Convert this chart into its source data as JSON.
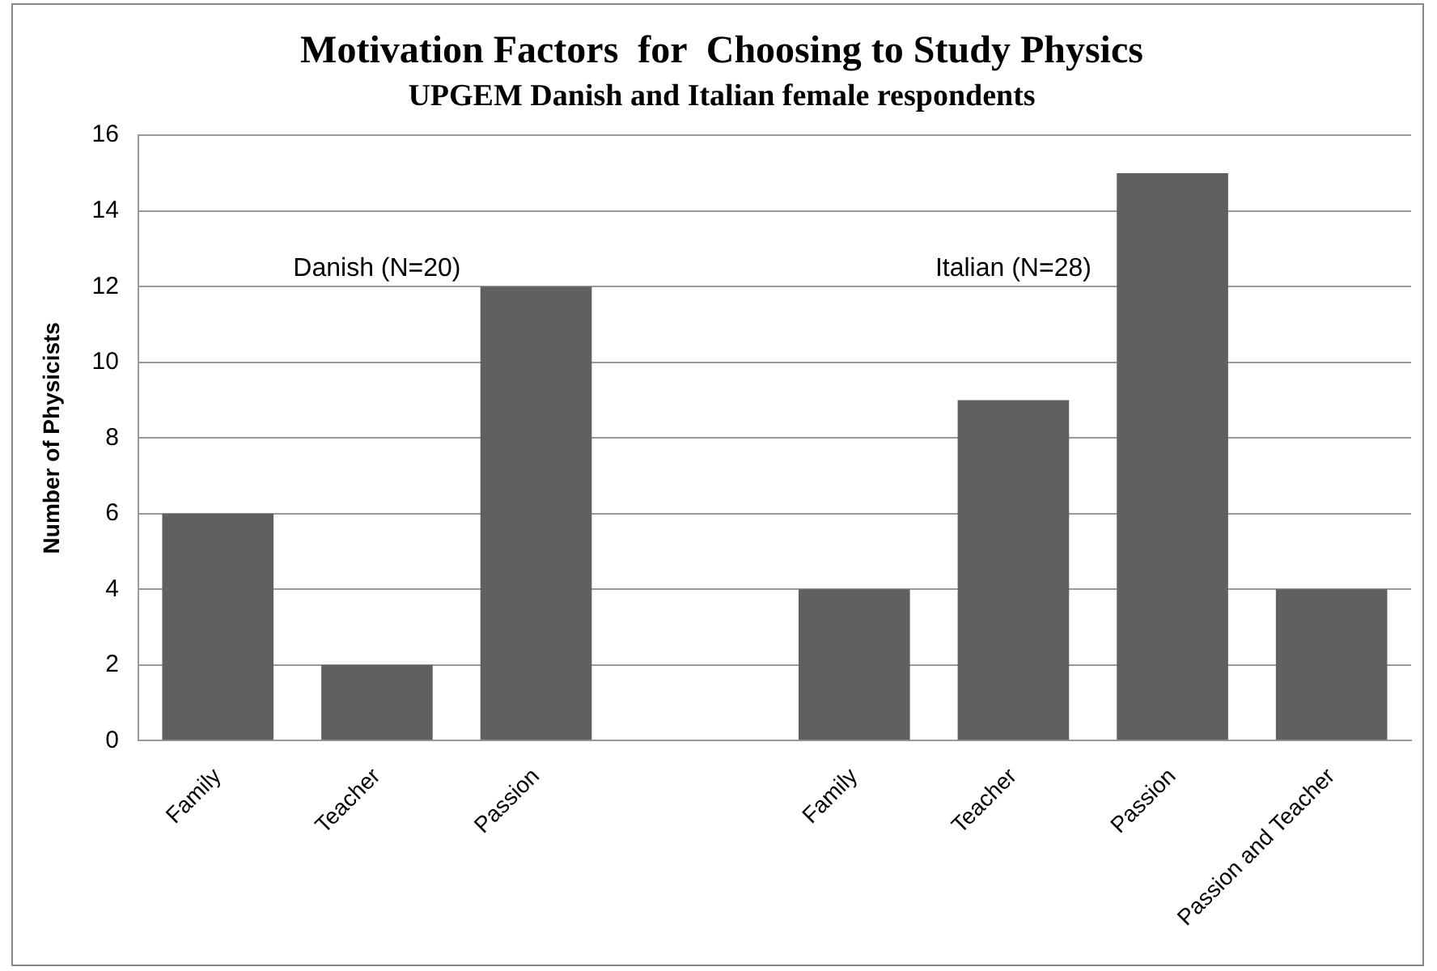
{
  "chart_data": {
    "type": "bar",
    "title": "Motivation Factors  for  Choosing to Study Physics",
    "subtitle": "UPGEM Danish and Italian female respondents",
    "ylabel": "Number of Physicists",
    "categories": [
      "Family",
      "Teacher",
      "Passion",
      null,
      "Family",
      "Teacher",
      "Passion",
      "Passion and Teacher"
    ],
    "values": [
      6,
      2,
      12,
      null,
      4,
      9,
      15,
      4
    ],
    "color": "#606060",
    "ylim": [
      0,
      16
    ],
    "yticks": [
      0,
      2,
      4,
      6,
      8,
      10,
      12,
      14,
      16
    ],
    "grid": "y",
    "legend": false,
    "annotations": [
      "Danish (N=20)",
      "Italian (N=28)"
    ]
  }
}
